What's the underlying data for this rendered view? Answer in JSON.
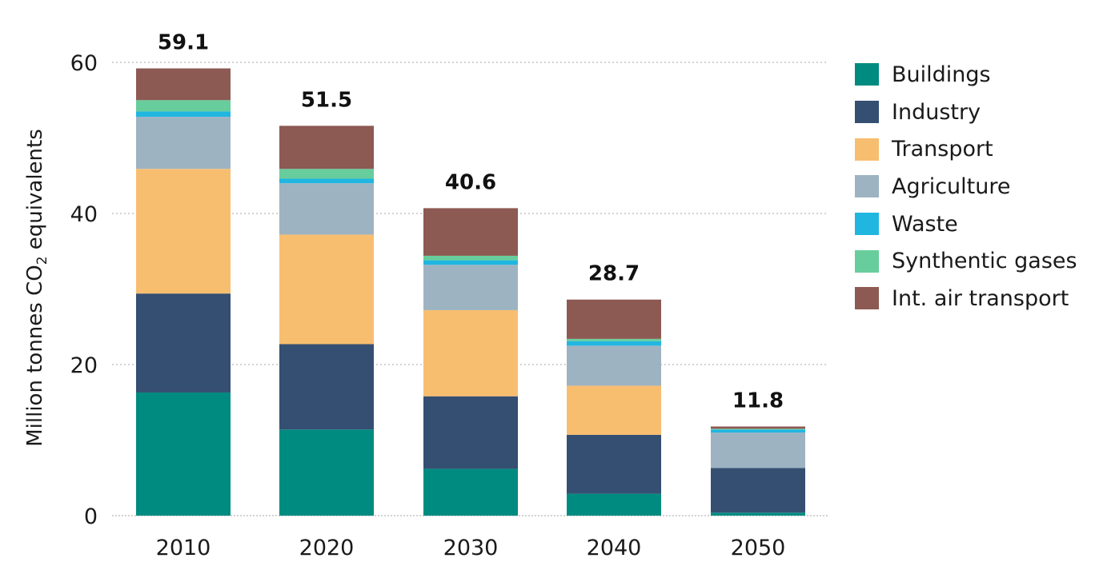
{
  "chart_data": {
    "type": "bar",
    "stacked": true,
    "categories": [
      "2010",
      "2020",
      "2030",
      "2040",
      "2050"
    ],
    "ylabel": {
      "main": "Million tonnes CO",
      "subscript": "2",
      "suffix": " equivalents"
    },
    "ylim": [
      0,
      60
    ],
    "yticks": [
      0,
      20,
      40,
      60
    ],
    "grid": "horizontal-dotted",
    "legend_position": "right",
    "totals": [
      "59.1",
      "51.5",
      "40.6",
      "28.7",
      "11.8"
    ],
    "series": [
      {
        "name": "Buildings",
        "color": "#008b80",
        "values": [
          16.3,
          11.4,
          6.2,
          2.9,
          0.4
        ]
      },
      {
        "name": "Industry",
        "color": "#354f72",
        "values": [
          13.1,
          11.3,
          9.6,
          7.8,
          5.9
        ]
      },
      {
        "name": "Transport",
        "color": "#f8be70",
        "values": [
          16.5,
          14.5,
          11.4,
          6.5,
          0.0
        ]
      },
      {
        "name": "Agriculture",
        "color": "#9eb3c2",
        "values": [
          6.9,
          6.8,
          6.0,
          5.3,
          4.7
        ]
      },
      {
        "name": "Waste",
        "color": "#20b6e0",
        "values": [
          0.7,
          0.6,
          0.6,
          0.6,
          0.4
        ]
      },
      {
        "name": "Synthentic gases",
        "color": "#67cd9c",
        "values": [
          1.5,
          1.3,
          0.6,
          0.3,
          0.1
        ]
      },
      {
        "name": "Int. air transport",
        "color": "#8c5a53",
        "values": [
          4.2,
          5.7,
          6.3,
          5.2,
          0.3
        ]
      }
    ]
  }
}
